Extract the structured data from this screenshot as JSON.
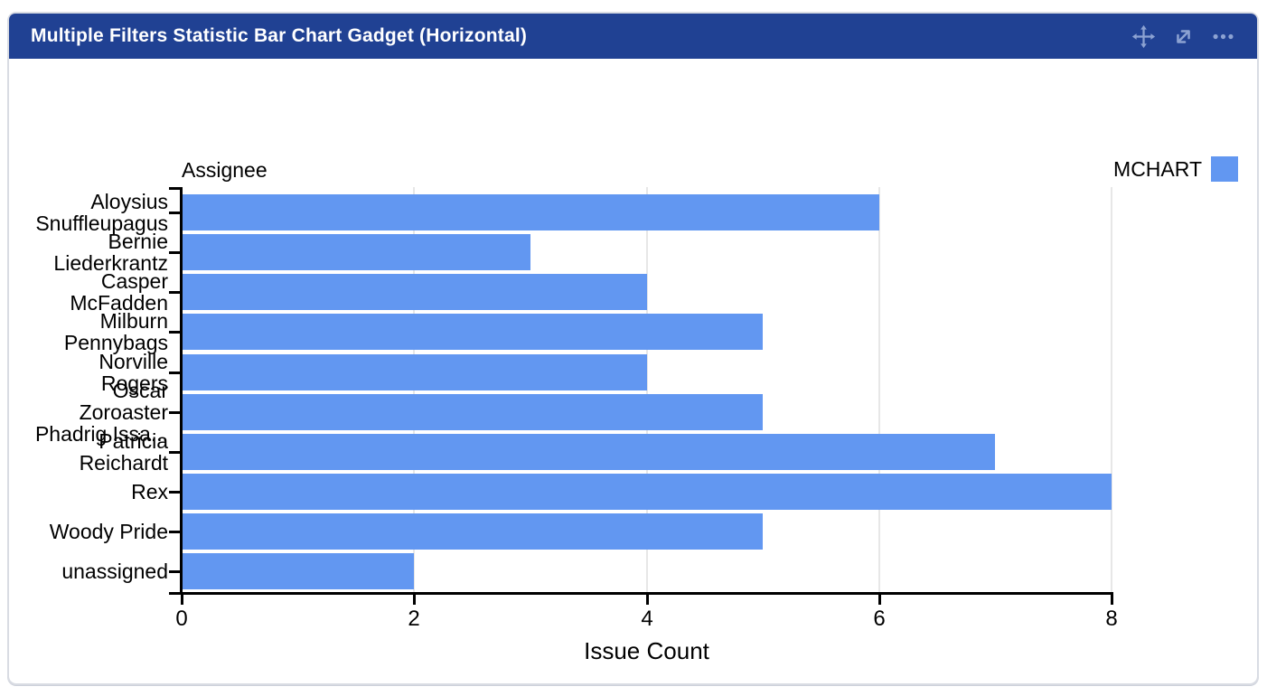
{
  "header": {
    "title": "Multiple Filters Statistic Bar Chart Gadget (Horizontal)",
    "controls": [
      {
        "name": "move",
        "icon": "move-icon"
      },
      {
        "name": "expand",
        "icon": "expand-icon"
      },
      {
        "name": "more-options",
        "icon": "ellipsis-icon"
      }
    ]
  },
  "chart_data": {
    "type": "bar",
    "orientation": "horizontal",
    "title": "Assignee",
    "xlabel": "Issue Count",
    "ylabel": "Assignee",
    "categories": [
      "Aloysius Snuffleupagus",
      "Bernie Liederkrantz",
      "Casper McFadden",
      "Milburn Pennybags",
      "Norville Rogers",
      "Oscar Zoroaster Phadrig Issa...",
      "Patricia Reichardt",
      "Rex",
      "Woody Pride",
      "unassigned"
    ],
    "category_display_lines": [
      [
        "Aloysius",
        "Snuffleupagus"
      ],
      [
        "Bernie",
        "Liederkrantz"
      ],
      [
        "Casper",
        "McFadden"
      ],
      [
        "Milburn",
        "Pennybags"
      ],
      [
        "Norville",
        "Rogers"
      ],
      [
        "Oscar",
        "Zoroaster",
        "Phadrig Issa..."
      ],
      [
        "Patricia",
        "Reichardt"
      ],
      [
        "Rex"
      ],
      [
        "Woody Pride"
      ],
      [
        "unassigned"
      ]
    ],
    "series": [
      {
        "name": "MCHART",
        "color": "#6297F1",
        "values": [
          6,
          3,
          4,
          5,
          4,
          5,
          7,
          8,
          5,
          2
        ]
      }
    ],
    "xlim": [
      0,
      8
    ],
    "xticks": [
      0,
      2,
      4,
      6,
      8
    ],
    "grid": true,
    "legend_position": "top-right"
  },
  "colors": {
    "header_bg": "#204193",
    "header_icon": "#8CA2D2",
    "bar": "#6297F1",
    "grid": "#e7e7e7",
    "axis": "#000000",
    "card_border": "#d9dce3"
  }
}
